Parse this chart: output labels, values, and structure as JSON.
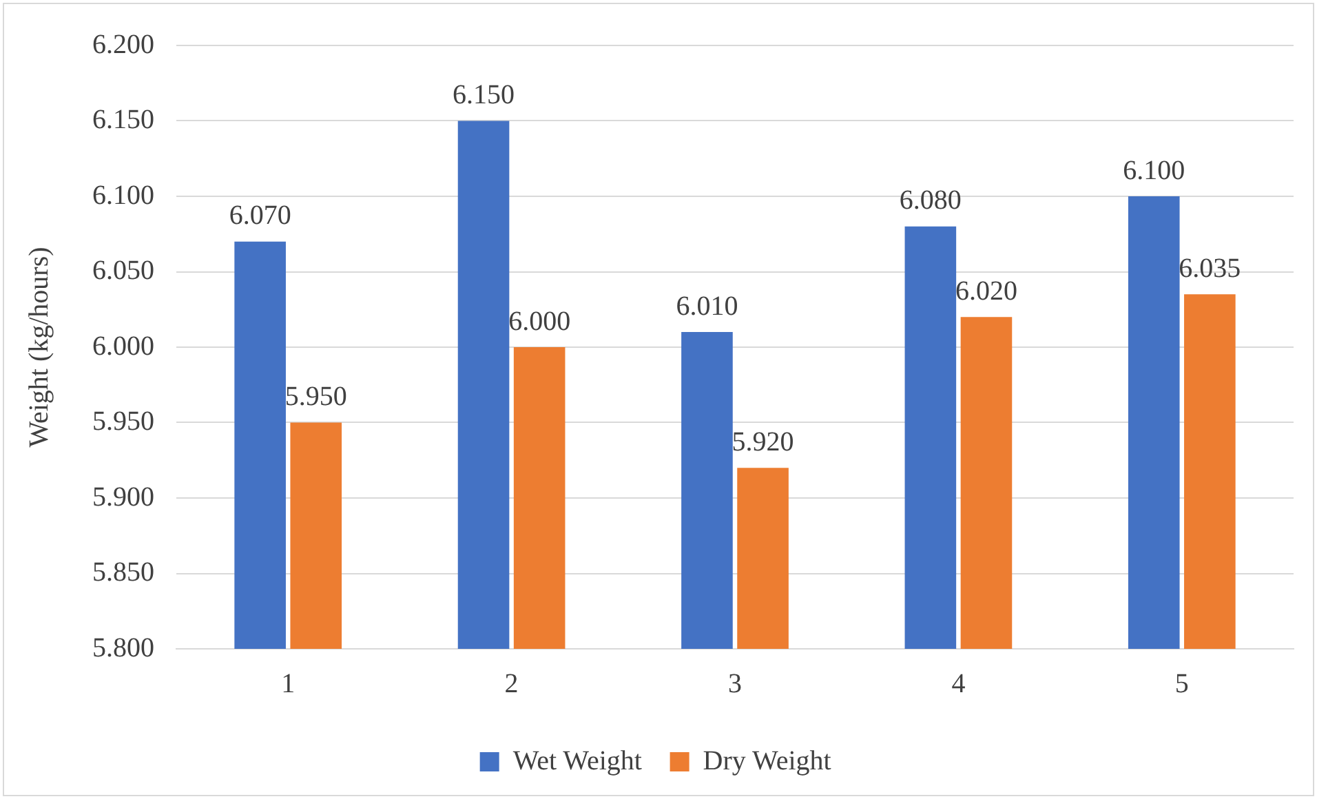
{
  "chart_data": {
    "type": "bar",
    "ylabel": "Weight (kg/hours)",
    "categories": [
      "1",
      "2",
      "3",
      "4",
      "5"
    ],
    "series": [
      {
        "name": "Wet Weight",
        "color": "#4472c4",
        "values": [
          6.07,
          6.15,
          6.01,
          6.08,
          6.1
        ],
        "value_labels": [
          "6.070",
          "6.150",
          "6.010",
          "6.080",
          "6.100"
        ]
      },
      {
        "name": "Dry Weight",
        "color": "#ed7d31",
        "values": [
          5.95,
          6.0,
          5.92,
          6.02,
          6.035
        ],
        "value_labels": [
          "5.950",
          "6.000",
          "5.920",
          "6.020",
          "6.035"
        ]
      }
    ],
    "ylim": [
      5.8,
      6.2
    ],
    "yticks": [
      {
        "value": 5.8,
        "label": "5.800"
      },
      {
        "value": 5.85,
        "label": "5.850"
      },
      {
        "value": 5.9,
        "label": "5.900"
      },
      {
        "value": 5.95,
        "label": "5.950"
      },
      {
        "value": 6.0,
        "label": "6.000"
      },
      {
        "value": 6.05,
        "label": "6.050"
      },
      {
        "value": 6.1,
        "label": "6.100"
      },
      {
        "value": 6.15,
        "label": "6.150"
      },
      {
        "value": 6.2,
        "label": "6.200"
      }
    ],
    "grid": "y",
    "legend": "bottom"
  }
}
